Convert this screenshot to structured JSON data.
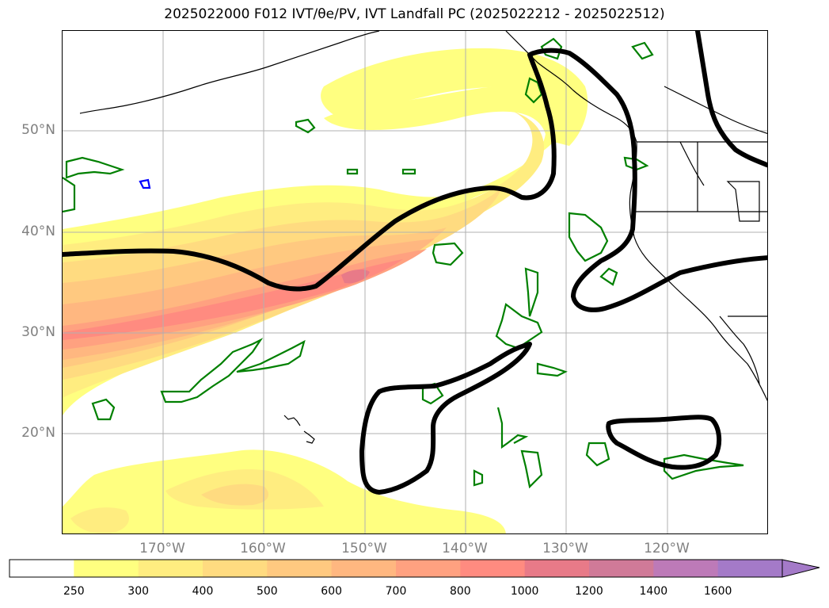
{
  "title": "2025022000 F012 IVT/θe/PV, IVT Landfall PC (2025022212 - 2025022512)",
  "map": {
    "lat_labels": [
      "50°N",
      "40°N",
      "30°N",
      "20°N"
    ],
    "lon_labels": [
      "170°W",
      "160°W",
      "150°W",
      "140°W",
      "130°W",
      "120°W"
    ],
    "colors": {
      "frame": "#000000",
      "coastline": "#000000",
      "grid": "#b0b0b0",
      "pv_contour": "#008000",
      "pv_contour_alt": "#0000ff",
      "landfall_contour": "#000000"
    }
  },
  "colorbar": {
    "levels": [
      "250",
      "300",
      "400",
      "500",
      "600",
      "700",
      "800",
      "1000",
      "1200",
      "1400",
      "1600"
    ],
    "colors": [
      "#ffffff",
      "#ffff80",
      "#ffed80",
      "#ffdb80",
      "#ffc980",
      "#ffb780",
      "#ffa180",
      "#ff8b80",
      "#e87a88",
      "#d07a98",
      "#bd7ab8",
      "#a47ac8"
    ],
    "extend": "max"
  }
}
